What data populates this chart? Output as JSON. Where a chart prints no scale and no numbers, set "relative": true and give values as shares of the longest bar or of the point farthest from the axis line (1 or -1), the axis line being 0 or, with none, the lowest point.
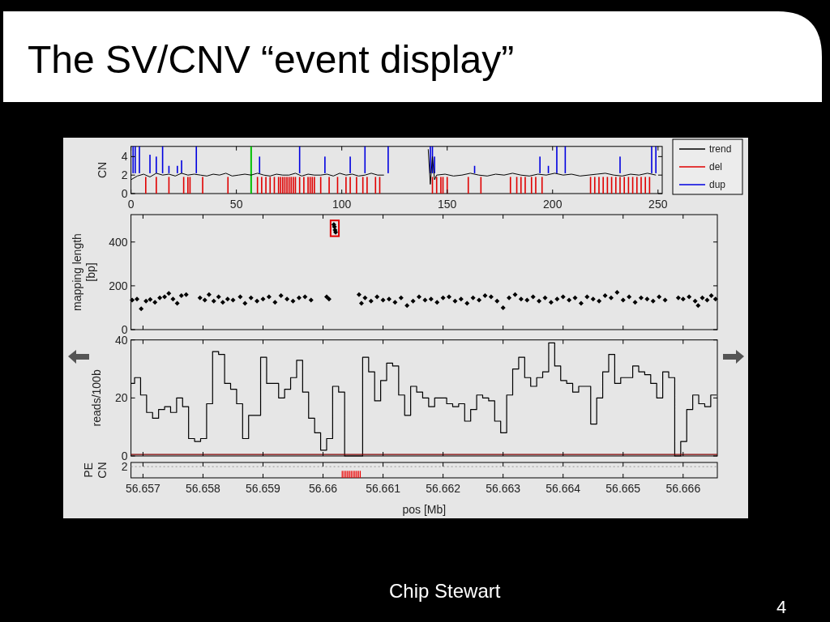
{
  "chart_data": [
    {
      "type": "line",
      "title": "The SV/CNV “event display”",
      "ylabel": "CN",
      "xlim": [
        0,
        252
      ],
      "xticks": [
        0,
        50,
        100,
        150,
        200,
        250
      ],
      "ylim": [
        0,
        5.1
      ],
      "yticks": [
        0,
        2,
        4
      ],
      "legend": "right",
      "ref_lines": [
        {
          "axis": "x",
          "value": 57,
          "color": "#00c000"
        }
      ],
      "series": [
        {
          "name": "trend",
          "color": "#000000",
          "x": [
            0,
            3,
            6,
            9,
            12,
            15,
            18,
            21,
            24,
            27,
            30,
            33,
            36,
            39,
            42,
            45,
            48,
            51,
            54,
            57,
            60,
            63,
            66,
            69,
            72,
            75,
            78,
            81,
            84,
            87,
            90,
            93,
            96,
            99,
            102,
            105,
            108,
            111,
            114,
            117,
            120,
            121,
            141,
            142,
            143,
            144,
            145,
            149,
            153,
            157,
            161,
            165,
            169,
            173,
            177,
            181,
            185,
            189,
            193,
            197,
            201,
            205,
            209,
            213,
            217,
            221,
            225,
            229,
            233,
            237,
            241,
            245,
            249
          ],
          "values": [
            1.5,
            1.9,
            2.1,
            1.8,
            2.2,
            2,
            2.1,
            1.9,
            2.2,
            2,
            2.1,
            2,
            1.9,
            2.1,
            2,
            2.2,
            1.9,
            2,
            2.1,
            2,
            2.2,
            2,
            1.9,
            2.1,
            2,
            2,
            2.2,
            1.9,
            2.1,
            2,
            2,
            2.1,
            1.9,
            2.2,
            2,
            2.1,
            1.9,
            2,
            2.2,
            2,
            2,
            null,
            4.8,
            1,
            4,
            1.5,
            2,
            2.1,
            1.9,
            2,
            2.2,
            2,
            1.9,
            2.1,
            2,
            2.2,
            2,
            1.9,
            2.1,
            2,
            2.2,
            2,
            2.1,
            1.9,
            2,
            2.1,
            2.2,
            2,
            1.9,
            2.1,
            2,
            2.2,
            2
          ]
        },
        {
          "name": "del",
          "type": "bar",
          "color": "#e00000",
          "x": [
            7,
            12,
            18,
            25,
            27,
            28,
            34,
            46,
            60,
            62,
            64,
            66,
            68,
            70,
            71,
            72,
            73,
            74,
            75,
            76,
            77,
            78,
            80,
            82,
            84,
            85,
            86,
            87,
            90,
            94,
            98,
            102,
            104,
            107,
            110,
            112,
            116,
            118,
            143,
            145,
            147,
            148,
            150,
            160,
            166,
            180,
            183,
            185,
            187,
            190,
            192,
            195,
            218,
            220,
            222,
            224,
            226,
            228,
            230,
            232,
            234,
            236,
            238,
            240,
            242,
            244,
            246
          ],
          "values": [
            1.8,
            1.8,
            1.8,
            1.8,
            1.8,
            1.8,
            1.8,
            1.8,
            1.8,
            1.8,
            1.8,
            1.8,
            1.8,
            1.8,
            1.8,
            1.8,
            1.8,
            1.8,
            1.8,
            1.8,
            1.8,
            1.8,
            1.8,
            1.8,
            1.8,
            1.8,
            1.8,
            1.8,
            1.8,
            1.8,
            1.8,
            1.8,
            1.8,
            1.8,
            1.8,
            1.8,
            1.8,
            1.8,
            1.8,
            1.8,
            1.8,
            1.8,
            1.8,
            1.8,
            1.8,
            1.8,
            1.8,
            1.8,
            1.8,
            1.8,
            1.8,
            1.8,
            1.8,
            1.8,
            1.8,
            1.8,
            1.8,
            1.8,
            1.8,
            1.8,
            1.8,
            1.8,
            1.8,
            1.8,
            1.8,
            1.8,
            1.8
          ]
        },
        {
          "name": "dup",
          "type": "bar",
          "color": "#0000e0",
          "x": [
            1,
            2,
            4,
            9,
            12,
            15,
            18,
            22,
            24,
            31,
            61,
            80,
            92,
            104,
            111,
            122,
            142,
            143,
            144,
            163,
            194,
            198,
            202,
            206,
            232,
            247,
            249
          ],
          "base": [
            2.2,
            2.2,
            2.2,
            2.2,
            2.2,
            2.2,
            2.2,
            2.2,
            2.2,
            2.2,
            2.2,
            2.2,
            2.2,
            2.2,
            2.2,
            2.2,
            2.2,
            2.2,
            2.2,
            2.2,
            2.2,
            2.2,
            2.2,
            2.2,
            2.2,
            2.2,
            2.2
          ],
          "values": [
            2.9,
            2.9,
            2.9,
            2,
            1.8,
            2.9,
            0.8,
            0.8,
            1.4,
            2.9,
            1.8,
            2.9,
            1.8,
            1.8,
            2.9,
            2.9,
            2.9,
            2.9,
            1.8,
            0.8,
            1.8,
            0.8,
            2.9,
            2.9,
            1.8,
            2.9,
            2.9
          ]
        }
      ]
    },
    {
      "type": "scatter",
      "ylabel": "mapping length\n[bp]",
      "xlim": [
        56.6568,
        56.66657
      ],
      "xticks": [
        56.657,
        56.658,
        56.659,
        56.66,
        56.661,
        56.662,
        56.663,
        56.664,
        56.665,
        56.666
      ],
      "ylim": [
        0,
        525
      ],
      "yticks": [
        0,
        200,
        400
      ],
      "tick_labels": "y",
      "marker": "diamond",
      "series": [
        {
          "color": "#000000",
          "x": [
            56.65682,
            56.6569,
            56.65697,
            56.65705,
            56.65712,
            56.6572,
            56.65728,
            56.65736,
            56.65743,
            56.6575,
            56.65757,
            56.65764,
            56.65772,
            56.65795,
            56.65803,
            56.6581,
            56.65818,
            56.65826,
            56.65833,
            56.65841,
            56.6585,
            56.65862,
            56.6587,
            56.6588,
            56.6589,
            56.659,
            56.6591,
            56.6592,
            56.6593,
            56.6594,
            56.6595,
            56.6596,
            56.6597,
            56.6598,
            56.66006,
            56.6601,
            56.6606,
            56.66064,
            56.6607,
            56.6608,
            56.6609,
            56.661,
            56.6611,
            56.6612,
            56.6613,
            56.6614,
            56.6615,
            56.6616,
            56.6617,
            56.6618,
            56.6619,
            56.662,
            56.6621,
            56.6622,
            56.6623,
            56.6624,
            56.6625,
            56.6626,
            56.6627,
            56.6628,
            56.6629,
            56.663,
            56.6631,
            56.6632,
            56.6633,
            56.6634,
            56.6635,
            56.6636,
            56.6637,
            56.6638,
            56.6639,
            56.664,
            56.6641,
            56.6642,
            56.6643,
            56.6644,
            56.6645,
            56.6646,
            56.6647,
            56.6648,
            56.6649,
            56.665,
            56.6651,
            56.6652,
            56.6653,
            56.6654,
            56.6655,
            56.6656,
            56.6657,
            56.66592,
            56.666,
            56.6661,
            56.6662,
            56.66625,
            56.66632,
            56.6664,
            56.66647,
            56.66654
          ],
          "values": [
            135,
            140,
            95,
            130,
            138,
            125,
            145,
            150,
            165,
            140,
            120,
            155,
            160,
            145,
            135,
            160,
            130,
            150,
            125,
            140,
            135,
            150,
            120,
            145,
            130,
            140,
            150,
            125,
            155,
            140,
            130,
            145,
            150,
            135,
            150,
            140,
            160,
            120,
            145,
            130,
            150,
            135,
            140,
            125,
            145,
            110,
            130,
            150,
            135,
            140,
            125,
            145,
            150,
            130,
            140,
            120,
            145,
            135,
            155,
            150,
            130,
            100,
            145,
            160,
            140,
            135,
            150,
            130,
            145,
            125,
            140,
            150,
            135,
            145,
            120,
            150,
            140,
            130,
            155,
            145,
            170,
            135,
            150,
            125,
            145,
            140,
            130,
            150,
            135,
            145,
            140,
            150,
            130,
            110,
            145,
            135,
            155,
            140
          ]
        },
        {
          "color": "#000000",
          "x": [
            56.66018,
            56.66019,
            56.6602,
            56.66021
          ],
          "values": [
            480,
            470,
            455,
            445
          ]
        }
      ]
    },
    {
      "type": "step",
      "ylabel": "reads/100b",
      "xlim": [
        56.6568,
        56.66657
      ],
      "xticks": [
        56.657,
        56.658,
        56.659,
        56.66,
        56.661,
        56.662,
        56.663,
        56.664,
        56.665,
        56.666
      ],
      "ylim": [
        0,
        40
      ],
      "yticks": [
        0,
        20,
        40
      ],
      "tick_labels": "y",
      "series": [
        {
          "color": "#000000",
          "x": [
            56.6568,
            56.65686,
            56.65696,
            56.65706,
            56.65716,
            56.65726,
            56.65736,
            56.65746,
            56.65756,
            56.65766,
            56.65776,
            56.65786,
            56.65796,
            56.65806,
            56.65816,
            56.65826,
            56.65836,
            56.65846,
            56.65856,
            56.65866,
            56.65876,
            56.65886,
            56.65896,
            56.65906,
            56.65916,
            56.65926,
            56.65936,
            56.65946,
            56.65956,
            56.65966,
            56.65976,
            56.65986,
            56.65996,
            56.66006,
            56.66016,
            56.66026,
            56.66036,
            56.66046,
            56.66056,
            56.66066,
            56.66076,
            56.66086,
            56.66096,
            56.66106,
            56.66116,
            56.66126,
            56.66136,
            56.66146,
            56.66156,
            56.66166,
            56.66176,
            56.66186,
            56.66196,
            56.66206,
            56.66216,
            56.66226,
            56.66236,
            56.66246,
            56.66256,
            56.66266,
            56.66276,
            56.66286,
            56.66296,
            56.66306,
            56.66316,
            56.66326,
            56.66336,
            56.66346,
            56.66356,
            56.66366,
            56.66376,
            56.66386,
            56.66396,
            56.66406,
            56.66416,
            56.66426,
            56.66436,
            56.66446,
            56.66456,
            56.66466,
            56.66476,
            56.66486,
            56.66496,
            56.66506,
            56.66516,
            56.66526,
            56.66536,
            56.66546,
            56.66556,
            56.66566,
            56.66576,
            56.66586,
            56.66596,
            56.66606,
            56.66616,
            56.66626,
            56.66636,
            56.66646,
            56.66656
          ],
          "values": [
            25,
            27,
            21,
            15,
            13,
            16,
            17,
            15,
            20,
            17,
            6,
            5,
            6,
            18,
            36,
            35,
            25,
            23,
            18,
            6,
            14,
            14,
            34,
            25,
            25,
            20,
            23,
            27,
            33,
            22,
            13,
            8,
            2,
            6,
            24,
            22,
            0,
            0,
            0,
            34,
            29,
            19,
            26,
            32,
            31,
            21,
            14,
            24,
            22,
            20,
            17,
            20,
            20,
            18,
            17,
            18,
            12,
            16,
            21,
            20,
            19,
            12,
            8,
            21,
            30,
            34,
            27,
            24,
            27,
            29,
            39,
            31,
            26,
            25,
            22,
            24,
            24,
            11,
            20,
            29,
            35,
            25,
            27,
            27,
            31,
            29,
            28,
            25,
            20,
            29,
            27,
            0,
            5,
            16,
            21,
            18,
            17,
            21,
            21
          ]
        },
        {
          "color": "#800000",
          "x": [
            56.6568,
            56.6585,
            56.66,
            56.6605,
            56.6615,
            56.665,
            56.66657
          ],
          "values": [
            0.5,
            0.5,
            0.5,
            0.5,
            0.5,
            0.5,
            0.5
          ]
        }
      ]
    },
    {
      "type": "bar",
      "ylabel": "PE\nCN",
      "xlabel": "pos [Mb]",
      "xlim": [
        56.6568,
        56.66657
      ],
      "xticks": [
        {
          "value": 56.657,
          "label": "56.657"
        },
        {
          "value": 56.658,
          "label": "56.658"
        },
        {
          "value": 56.659,
          "label": "56.659"
        },
        {
          "value": 56.66,
          "label": "56.66"
        },
        {
          "value": 56.661,
          "label": "56.661"
        },
        {
          "value": 56.662,
          "label": "56.662"
        },
        {
          "value": 56.663,
          "label": "56.663"
        },
        {
          "value": 56.664,
          "label": "56.664"
        },
        {
          "value": 56.665,
          "label": "56.665"
        },
        {
          "value": 56.666,
          "label": "56.666"
        }
      ],
      "relative": true,
      "annotations": [
        "2",
        "Chip Stewart",
        "4"
      ],
      "ref_lines": [
        {
          "axis": "y",
          "value": 1.6,
          "color": "#999999",
          "line_style": "dotted"
        }
      ],
      "series": [
        {
          "color": "#ee0000",
          "x": [
            56.66032,
            56.66035,
            56.66038,
            56.66041,
            56.66044,
            56.66047,
            56.6605,
            56.66053,
            56.66056,
            56.66059,
            56.66062
          ],
          "values": [
            1,
            1,
            1,
            1,
            1,
            1,
            1,
            1,
            1,
            1,
            1
          ]
        }
      ]
    }
  ]
}
